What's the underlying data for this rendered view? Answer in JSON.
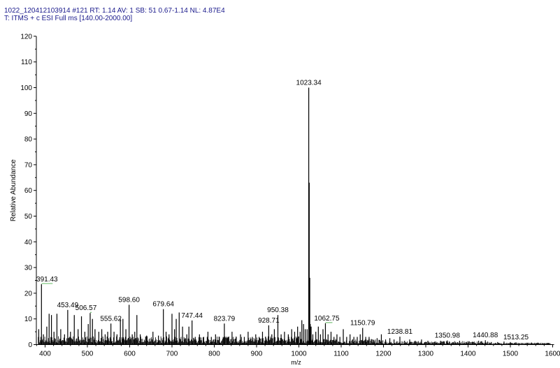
{
  "header": {
    "line1": "1022_120412103914 #121   RT: 1.14   AV: 1   SB: 51  0.67-1.14   NL: 4.87E4",
    "line2": "T: ITMS + c ESI Full ms [140.00-2000.00]"
  },
  "chart_data": {
    "type": "bar",
    "title": "",
    "xlabel": "m/z",
    "ylabel": "Relative Abundance",
    "xlim": [
      380,
      1600
    ],
    "ylim": [
      0,
      120
    ],
    "xticks": [
      400,
      500,
      600,
      700,
      800,
      900,
      1000,
      1100,
      1200,
      1300,
      1400,
      1500,
      1600
    ],
    "yticks": [
      0,
      10,
      20,
      30,
      40,
      50,
      60,
      70,
      80,
      90,
      100,
      110,
      120
    ],
    "grid": false,
    "legend": "none",
    "peak_color": "#000000",
    "label_leader_color": "#2ca02c",
    "peaks": [
      {
        "x": 385.0,
        "y": 6
      },
      {
        "x": 391.43,
        "y": 23.5
      },
      {
        "x": 396.0,
        "y": 4
      },
      {
        "x": 404.0,
        "y": 7
      },
      {
        "x": 409.5,
        "y": 12
      },
      {
        "x": 415.0,
        "y": 11.5
      },
      {
        "x": 421.0,
        "y": 5
      },
      {
        "x": 428.0,
        "y": 12
      },
      {
        "x": 437.0,
        "y": 6
      },
      {
        "x": 446.0,
        "y": 4
      },
      {
        "x": 453.49,
        "y": 13.5
      },
      {
        "x": 460.0,
        "y": 5
      },
      {
        "x": 469.0,
        "y": 11.5
      },
      {
        "x": 478.0,
        "y": 6
      },
      {
        "x": 486.0,
        "y": 11
      },
      {
        "x": 494.0,
        "y": 5
      },
      {
        "x": 502.0,
        "y": 8
      },
      {
        "x": 506.57,
        "y": 12.3
      },
      {
        "x": 512.0,
        "y": 10
      },
      {
        "x": 518.0,
        "y": 6
      },
      {
        "x": 527.0,
        "y": 5
      },
      {
        "x": 534.0,
        "y": 6
      },
      {
        "x": 542.0,
        "y": 4
      },
      {
        "x": 548.0,
        "y": 5
      },
      {
        "x": 555.62,
        "y": 8.2
      },
      {
        "x": 563.0,
        "y": 5
      },
      {
        "x": 570.0,
        "y": 4
      },
      {
        "x": 578.0,
        "y": 10
      },
      {
        "x": 584.0,
        "y": 10
      },
      {
        "x": 591.0,
        "y": 6
      },
      {
        "x": 598.6,
        "y": 15.5
      },
      {
        "x": 606.0,
        "y": 4
      },
      {
        "x": 612.0,
        "y": 5
      },
      {
        "x": 617.0,
        "y": 11.5
      },
      {
        "x": 625.0,
        "y": 4
      },
      {
        "x": 640.0,
        "y": 3.5
      },
      {
        "x": 655.0,
        "y": 5
      },
      {
        "x": 668.0,
        "y": 3.5
      },
      {
        "x": 679.64,
        "y": 13.8
      },
      {
        "x": 686.0,
        "y": 5
      },
      {
        "x": 693.0,
        "y": 4
      },
      {
        "x": 700.0,
        "y": 12
      },
      {
        "x": 706.0,
        "y": 6
      },
      {
        "x": 710.0,
        "y": 10
      },
      {
        "x": 717.0,
        "y": 12.5
      },
      {
        "x": 725.0,
        "y": 7
      },
      {
        "x": 735.0,
        "y": 4
      },
      {
        "x": 740.0,
        "y": 7
      },
      {
        "x": 747.44,
        "y": 9.4
      },
      {
        "x": 755.0,
        "y": 3
      },
      {
        "x": 765.0,
        "y": 4
      },
      {
        "x": 775.0,
        "y": 3
      },
      {
        "x": 785.0,
        "y": 5
      },
      {
        "x": 793.0,
        "y": 3
      },
      {
        "x": 803.0,
        "y": 4
      },
      {
        "x": 812.0,
        "y": 3
      },
      {
        "x": 823.79,
        "y": 8.2
      },
      {
        "x": 832.0,
        "y": 3
      },
      {
        "x": 842.0,
        "y": 5
      },
      {
        "x": 852.0,
        "y": 3
      },
      {
        "x": 862.0,
        "y": 4
      },
      {
        "x": 871.0,
        "y": 3
      },
      {
        "x": 880.0,
        "y": 5
      },
      {
        "x": 890.0,
        "y": 3
      },
      {
        "x": 898.0,
        "y": 4
      },
      {
        "x": 906.0,
        "y": 3
      },
      {
        "x": 914.0,
        "y": 5
      },
      {
        "x": 921.0,
        "y": 3
      },
      {
        "x": 928.71,
        "y": 7.5
      },
      {
        "x": 936.0,
        "y": 4
      },
      {
        "x": 942.0,
        "y": 6
      },
      {
        "x": 950.38,
        "y": 11.5
      },
      {
        "x": 958.0,
        "y": 4
      },
      {
        "x": 966.0,
        "y": 5
      },
      {
        "x": 975.0,
        "y": 4
      },
      {
        "x": 983.0,
        "y": 6
      },
      {
        "x": 990.0,
        "y": 5
      },
      {
        "x": 997.0,
        "y": 7
      },
      {
        "x": 1003.0,
        "y": 5
      },
      {
        "x": 1007.0,
        "y": 9.5
      },
      {
        "x": 1011.0,
        "y": 8
      },
      {
        "x": 1015.0,
        "y": 6
      },
      {
        "x": 1019.5,
        "y": 6
      },
      {
        "x": 1023.34,
        "y": 100
      },
      {
        "x": 1024.5,
        "y": 63
      },
      {
        "x": 1025.8,
        "y": 26
      },
      {
        "x": 1027.0,
        "y": 8
      },
      {
        "x": 1029.0,
        "y": 7
      },
      {
        "x": 1033.0,
        "y": 4
      },
      {
        "x": 1040.0,
        "y": 5
      },
      {
        "x": 1046.0,
        "y": 7
      },
      {
        "x": 1051.0,
        "y": 4
      },
      {
        "x": 1057.0,
        "y": 6
      },
      {
        "x": 1062.75,
        "y": 8.3
      },
      {
        "x": 1069.0,
        "y": 4
      },
      {
        "x": 1076.0,
        "y": 5
      },
      {
        "x": 1083.0,
        "y": 3
      },
      {
        "x": 1090.0,
        "y": 4
      },
      {
        "x": 1097.0,
        "y": 3
      },
      {
        "x": 1105.0,
        "y": 6
      },
      {
        "x": 1113.0,
        "y": 3
      },
      {
        "x": 1121.0,
        "y": 4
      },
      {
        "x": 1130.0,
        "y": 3
      },
      {
        "x": 1138.0,
        "y": 3
      },
      {
        "x": 1145.0,
        "y": 4
      },
      {
        "x": 1150.79,
        "y": 6.5
      },
      {
        "x": 1158.0,
        "y": 3
      },
      {
        "x": 1166.0,
        "y": 3
      },
      {
        "x": 1175.0,
        "y": 2
      },
      {
        "x": 1185.0,
        "y": 2.5
      },
      {
        "x": 1195.0,
        "y": 4
      },
      {
        "x": 1205.0,
        "y": 2
      },
      {
        "x": 1215.0,
        "y": 2.5
      },
      {
        "x": 1225.0,
        "y": 2
      },
      {
        "x": 1238.81,
        "y": 3.1
      },
      {
        "x": 1250.0,
        "y": 1.5
      },
      {
        "x": 1262.0,
        "y": 2
      },
      {
        "x": 1275.0,
        "y": 1.5
      },
      {
        "x": 1290.0,
        "y": 2
      },
      {
        "x": 1305.0,
        "y": 1.5
      },
      {
        "x": 1320.0,
        "y": 1
      },
      {
        "x": 1335.0,
        "y": 1.5
      },
      {
        "x": 1350.98,
        "y": 1.6
      },
      {
        "x": 1365.0,
        "y": 1
      },
      {
        "x": 1380.0,
        "y": 1.5
      },
      {
        "x": 1395.0,
        "y": 1
      },
      {
        "x": 1410.0,
        "y": 1
      },
      {
        "x": 1425.0,
        "y": 1.5
      },
      {
        "x": 1440.88,
        "y": 1.7
      },
      {
        "x": 1455.0,
        "y": 1
      },
      {
        "x": 1470.0,
        "y": 1
      },
      {
        "x": 1485.0,
        "y": 1.2
      },
      {
        "x": 1500.0,
        "y": 1
      },
      {
        "x": 1513.25,
        "y": 0.9
      },
      {
        "x": 1530.0,
        "y": 0.6
      },
      {
        "x": 1550.0,
        "y": 0.8
      },
      {
        "x": 1570.0,
        "y": 0.5
      },
      {
        "x": 1590.0,
        "y": 0.6
      }
    ],
    "annotations": [
      {
        "text": "391.43",
        "x": 391.43,
        "y": 23.5
      },
      {
        "text": "453.49",
        "x": 453.49,
        "y": 13.5
      },
      {
        "text": "506.57",
        "x": 506.57,
        "y": 12.3
      },
      {
        "text": "555.62",
        "x": 555.62,
        "y": 8.2
      },
      {
        "text": "598.60",
        "x": 598.6,
        "y": 15.5
      },
      {
        "text": "679.64",
        "x": 679.64,
        "y": 13.8
      },
      {
        "text": "747.44",
        "x": 747.44,
        "y": 9.4
      },
      {
        "text": "823.79",
        "x": 823.79,
        "y": 8.2
      },
      {
        "text": "928.71",
        "x": 928.71,
        "y": 7.5
      },
      {
        "text": "950.38",
        "x": 950.38,
        "y": 11.5
      },
      {
        "text": "1023.34",
        "x": 1023.34,
        "y": 100
      },
      {
        "text": "1062.75",
        "x": 1062.75,
        "y": 8.3
      },
      {
        "text": "1150.79",
        "x": 1150.79,
        "y": 6.5
      },
      {
        "text": "1238.81",
        "x": 1238.81,
        "y": 3.1
      },
      {
        "text": "1350.98",
        "x": 1350.98,
        "y": 1.6
      },
      {
        "text": "1440.88",
        "x": 1440.88,
        "y": 1.7
      },
      {
        "text": "1513.25",
        "x": 1513.25,
        "y": 0.9
      }
    ]
  }
}
